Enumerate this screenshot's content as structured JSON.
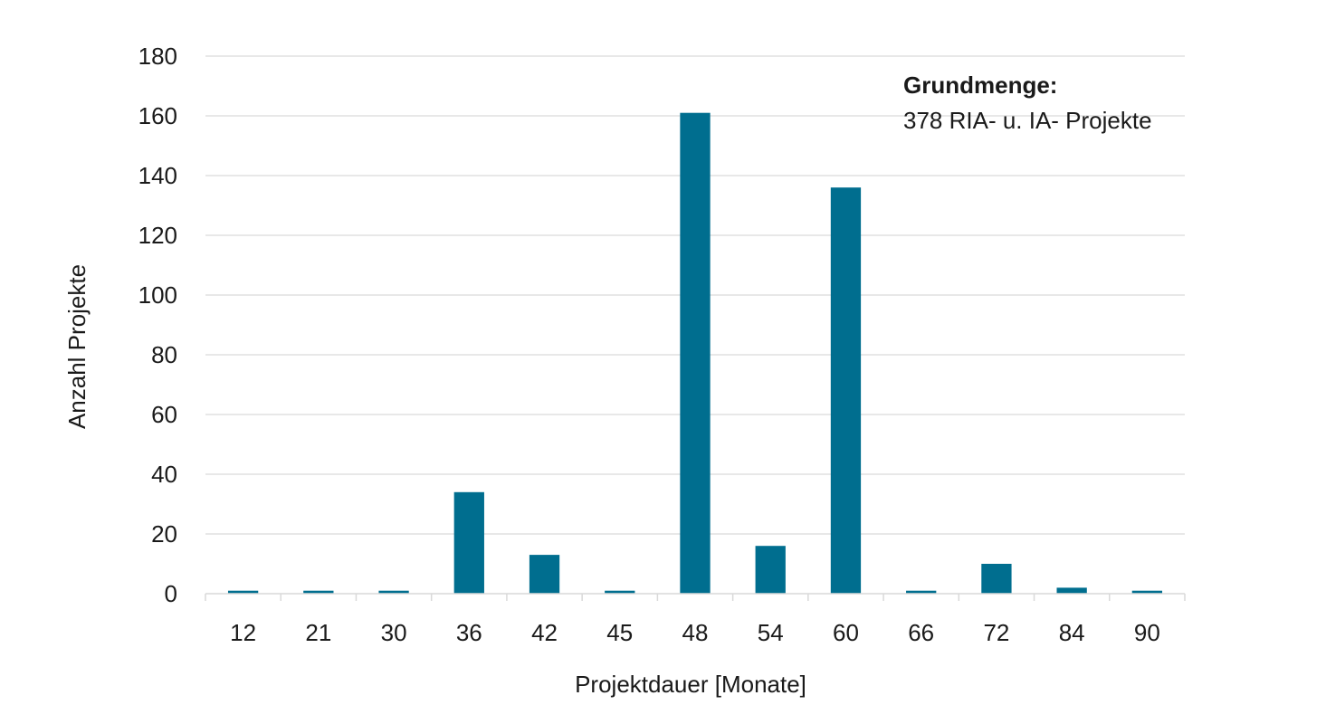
{
  "chart_data": {
    "type": "bar",
    "categories": [
      "12",
      "21",
      "30",
      "36",
      "42",
      "45",
      "48",
      "54",
      "60",
      "66",
      "72",
      "84",
      "90"
    ],
    "values": [
      1,
      1,
      1,
      34,
      13,
      1,
      161,
      16,
      136,
      1,
      10,
      2,
      1
    ],
    "xlabel": "Projektdauer [Monate]",
    "ylabel": "Anzahl Projekte",
    "ylim": [
      0,
      180
    ],
    "yticks": [
      0,
      20,
      40,
      60,
      80,
      100,
      120,
      140,
      160,
      180
    ],
    "grid": true,
    "bar_color": "#006e8f",
    "annotation": {
      "title": "Grundmenge:",
      "text": "378 RIA- u. IA- Projekte"
    }
  }
}
